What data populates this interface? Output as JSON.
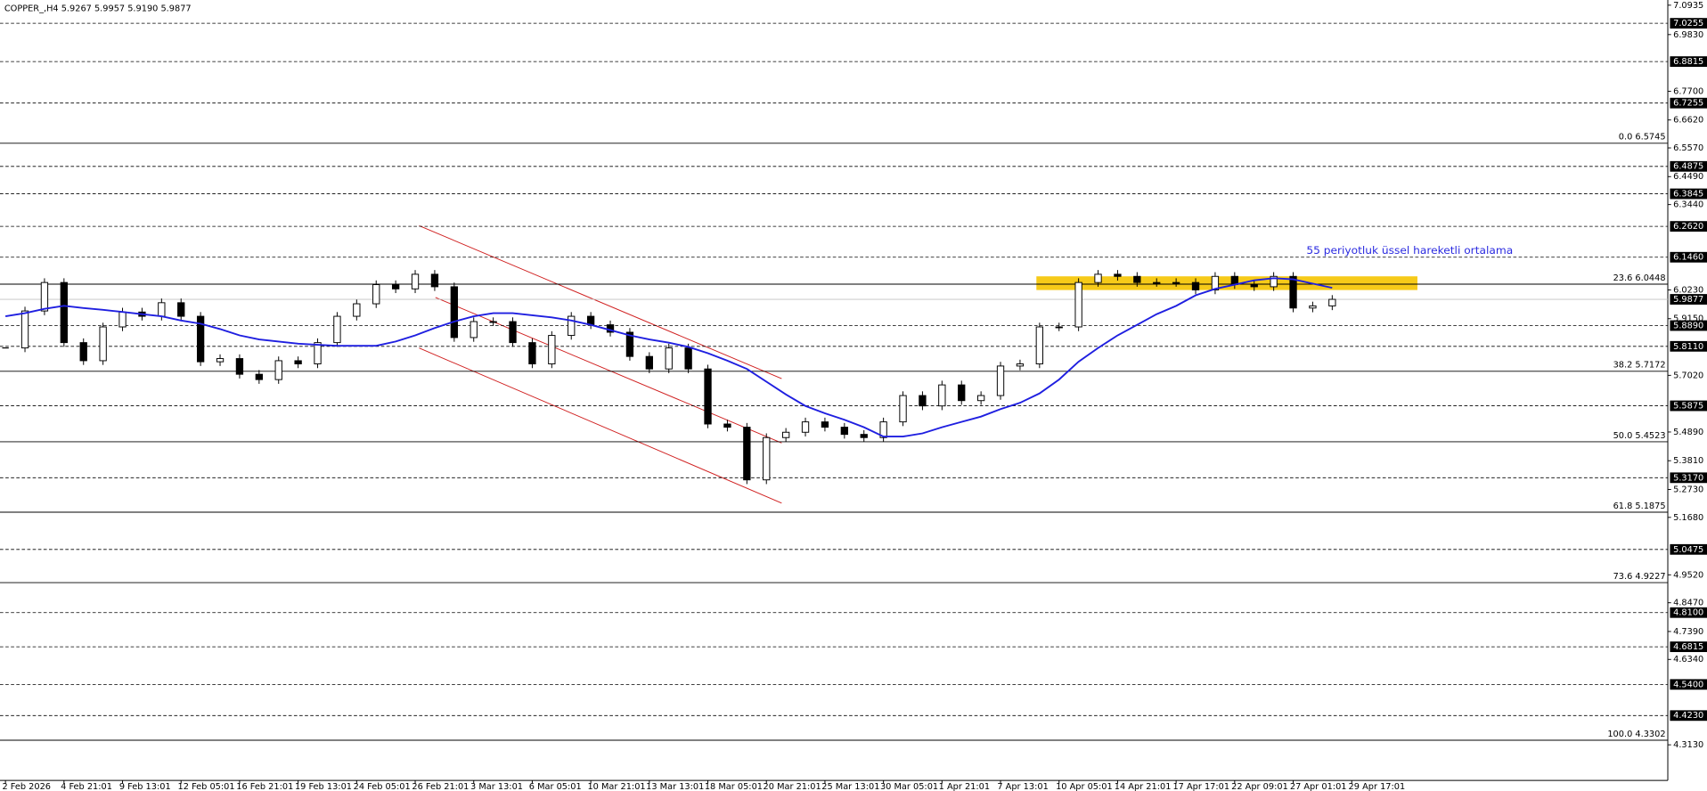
{
  "chart_data": {
    "type": "candlestick",
    "title": "COPPER_,H4 5.9267 5.9957 5.9190 5.9877",
    "annotation": "55 periyotluk üssel hareketli ortalama",
    "series": [
      {
        "type": "candlestick",
        "color": "#000000",
        "values": [
          5.805,
          5.944,
          6.051,
          5.825,
          5.757,
          5.884,
          5.94,
          5.924,
          5.975,
          5.924,
          5.753,
          5.765,
          5.706,
          5.686,
          5.757,
          5.745,
          5.825,
          5.924,
          5.971,
          6.043,
          6.027,
          6.082,
          6.035,
          5.844,
          5.904,
          5.904,
          5.825,
          5.745,
          5.852,
          5.924,
          5.892,
          5.864,
          5.773,
          5.726,
          5.805,
          5.726,
          5.519,
          5.507,
          5.309,
          5.468,
          5.488,
          5.527,
          5.507,
          5.48,
          5.468,
          5.527,
          5.626,
          5.587,
          5.666,
          5.607,
          5.626,
          5.737,
          5.745,
          5.884,
          5.884,
          6.051,
          6.082,
          6.074,
          6.051,
          6.051,
          6.051,
          6.023,
          6.074,
          6.043,
          6.035,
          6.074,
          5.955,
          5.963,
          5.9877
        ]
      },
      {
        "type": "line",
        "color": "#1f1fe0",
        "values": [
          5.924,
          5.936,
          5.952,
          5.963,
          5.955,
          5.948,
          5.94,
          5.932,
          5.924,
          5.908,
          5.896,
          5.876,
          5.852,
          5.837,
          5.829,
          5.821,
          5.817,
          5.813,
          5.813,
          5.813,
          5.829,
          5.852,
          5.88,
          5.904,
          5.924,
          5.936,
          5.936,
          5.928,
          5.92,
          5.908,
          5.892,
          5.872,
          5.852,
          5.837,
          5.825,
          5.809,
          5.785,
          5.757,
          5.726,
          5.678,
          5.63,
          5.587,
          5.559,
          5.535,
          5.507,
          5.472,
          5.472,
          5.484,
          5.507,
          5.527,
          5.547,
          5.575,
          5.599,
          5.634,
          5.686,
          5.753,
          5.805,
          5.852,
          5.892,
          5.932,
          5.963,
          6.003,
          6.027,
          6.043,
          6.059,
          6.067,
          6.063,
          6.047,
          6.031
        ]
      }
    ],
    "xlim": [
      -0.28,
      85.2
    ],
    "ylim": [
      4.179,
      7.113
    ],
    "xticks": [
      {
        "value": 0,
        "label": "2 Feb 2026"
      },
      {
        "value": 3,
        "label": "4 Feb 21:01"
      },
      {
        "value": 6,
        "label": "9 Feb 13:01"
      },
      {
        "value": 9,
        "label": "12 Feb 05:01"
      },
      {
        "value": 12,
        "label": "16 Feb 21:01"
      },
      {
        "value": 15,
        "label": "19 Feb 13:01"
      },
      {
        "value": 18,
        "label": "24 Feb 05:01"
      },
      {
        "value": 21,
        "label": "26 Feb 21:01"
      },
      {
        "value": 24,
        "label": "3 Mar 13:01"
      },
      {
        "value": 27,
        "label": "6 Mar 05:01"
      },
      {
        "value": 30,
        "label": "10 Mar 21:01"
      },
      {
        "value": 33,
        "label": "13 Mar 13:01"
      },
      {
        "value": 36,
        "label": "18 Mar 05:01"
      },
      {
        "value": 39,
        "label": "20 Mar 21:01"
      },
      {
        "value": 42,
        "label": "25 Mar 13:01"
      },
      {
        "value": 45,
        "label": "30 Mar 05:01"
      },
      {
        "value": 48,
        "label": "1 Apr 21:01"
      },
      {
        "value": 51,
        "label": "7 Apr 13:01"
      },
      {
        "value": 54,
        "label": "10 Apr 05:01"
      },
      {
        "value": 57,
        "label": "14 Apr 21:01"
      },
      {
        "value": 60,
        "label": "17 Apr 17:01"
      },
      {
        "value": 63,
        "label": "22 Apr 09:01"
      },
      {
        "value": 66,
        "label": "27 Apr 01:01"
      },
      {
        "value": 69,
        "label": "29 Apr 17:01"
      }
    ],
    "yticks": [
      7.0935,
      {
        "value": 6.983,
        "label": "6.9830"
      },
      {
        "value": 6.77,
        "label": "6.7700"
      },
      {
        "value": 6.662,
        "label": "6.6620"
      },
      {
        "value": 6.557,
        "label": "6.5570"
      },
      {
        "value": 6.449,
        "label": "6.4490"
      },
      {
        "value": 6.344,
        "label": "6.3440"
      },
      {
        "value": 6.023,
        "label": "6.0230"
      },
      {
        "value": 5.915,
        "label": "5.9150"
      },
      {
        "value": 5.702,
        "label": "5.7020"
      },
      {
        "value": 5.489,
        "label": "5.4890"
      },
      {
        "value": 5.381,
        "label": "5.3810"
      },
      {
        "value": 5.273,
        "label": "5.2730"
      },
      {
        "value": 5.168,
        "label": "5.1680"
      },
      {
        "value": 4.952,
        "label": "4.9520"
      },
      {
        "value": 4.847,
        "label": "4.8470"
      },
      {
        "value": 4.739,
        "label": "4.7390"
      },
      {
        "value": 4.634,
        "label": "4.6340"
      },
      {
        "value": 4.313,
        "label": "4.3130"
      }
    ],
    "levels": [
      7.0255,
      6.8815,
      6.7255,
      6.4875,
      6.3845,
      {
        "value": 6.262,
        "label": "6.2620"
      },
      {
        "value": 6.146,
        "label": "6.1460"
      },
      {
        "value": 5.889,
        "label": "5.8890"
      },
      {
        "value": 5.811,
        "label": "5.8110"
      },
      5.5875,
      {
        "value": 5.317,
        "label": "5.3170"
      },
      5.0475,
      {
        "value": 4.81,
        "label": "4.8100"
      },
      4.6815,
      {
        "value": 4.54,
        "label": "4.5400"
      },
      {
        "value": 4.423,
        "label": "4.4230"
      }
    ],
    "fib_levels": [
      {
        "value": 6.5745,
        "label": "0.0 6.5745"
      },
      {
        "value": 6.0448,
        "label": "23.6 6.0448"
      },
      {
        "value": 5.7172,
        "label": "38.2 5.7172"
      },
      {
        "value": 5.4523,
        "label": "50.0 5.4523"
      },
      {
        "value": 5.1875,
        "label": "61.8 5.1875"
      },
      {
        "value": 4.9227,
        "label": "73.6 4.9227"
      },
      {
        "value": 4.3302,
        "label": "100.0 4.3302"
      }
    ],
    "current_price": 5.9877
  }
}
